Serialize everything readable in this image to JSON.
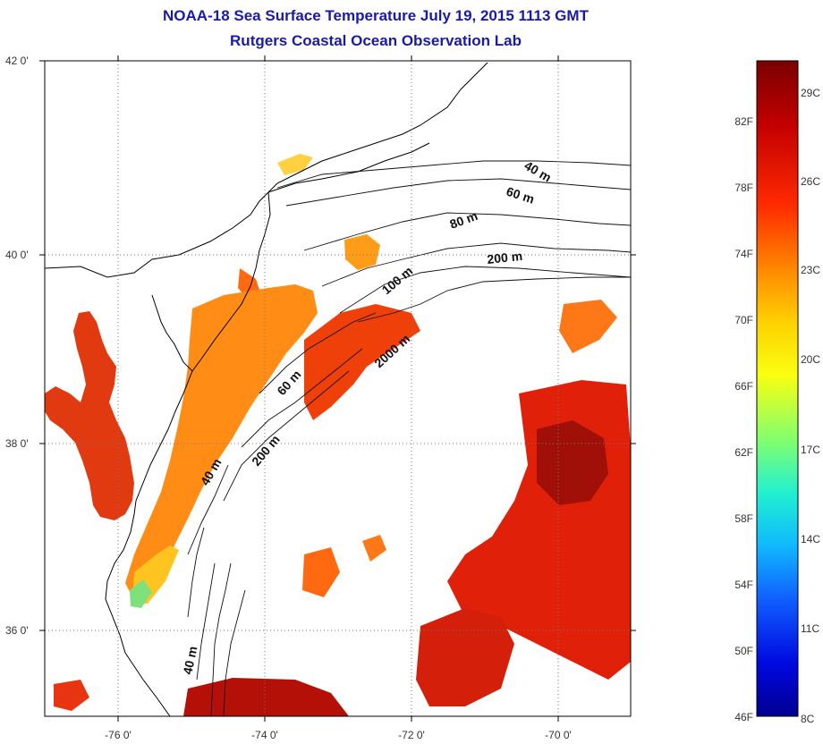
{
  "title": {
    "line1": "NOAA-18 Sea Surface Temperature July 19, 2015 1113 GMT",
    "line2": "Rutgers Coastal Ocean Observation Lab"
  },
  "map": {
    "lat_labels": [
      "42 0'",
      "40 0'",
      "38 0'",
      "36 0'"
    ],
    "lon_labels": [
      "-76 0'",
      "-74 0'",
      "-72 0'",
      "-70 0'"
    ],
    "isobath_labels": [
      "40 m",
      "60 m",
      "80 m",
      "200 m",
      "100 m",
      "2000 m",
      "60 m",
      "200 m",
      "40 m",
      "40 m"
    ],
    "colors": {
      "land": "#ffffff",
      "coast": "#000000",
      "grid": "#777777"
    }
  },
  "colorbar": {
    "celsius": [
      "29C",
      "26C",
      "23C",
      "20C",
      "17C",
      "14C",
      "11C",
      "8C"
    ],
    "fahrenheit": [
      "82F",
      "78F",
      "74F",
      "70F",
      "66F",
      "62F",
      "58F",
      "54F",
      "50F",
      "46F"
    ]
  }
}
